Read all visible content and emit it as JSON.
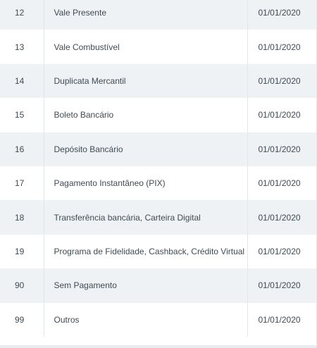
{
  "table": {
    "rows": [
      {
        "code": "12",
        "description": "Vale Presente",
        "date": "01/01/2020"
      },
      {
        "code": "13",
        "description": "Vale Combustível",
        "date": "01/01/2020"
      },
      {
        "code": "14",
        "description": "Duplicata Mercantil",
        "date": "01/01/2020"
      },
      {
        "code": "15",
        "description": "Boleto Bancário",
        "date": "01/01/2020"
      },
      {
        "code": "16",
        "description": "Depósito Bancário",
        "date": "01/01/2020"
      },
      {
        "code": "17",
        "description": "Pagamento Instantâneo (PIX)",
        "date": "01/01/2020"
      },
      {
        "code": "18",
        "description": "Transferência bancária, Carteira Digital",
        "date": "01/01/2020"
      },
      {
        "code": "19",
        "description": "Programa de Fidelidade, Cashback, Crédito Virtual",
        "date": "01/01/2020"
      },
      {
        "code": "90",
        "description": "Sem Pagamento",
        "date": "01/01/2020"
      },
      {
        "code": "99",
        "description": "Outros",
        "date": "01/01/2020"
      }
    ]
  }
}
